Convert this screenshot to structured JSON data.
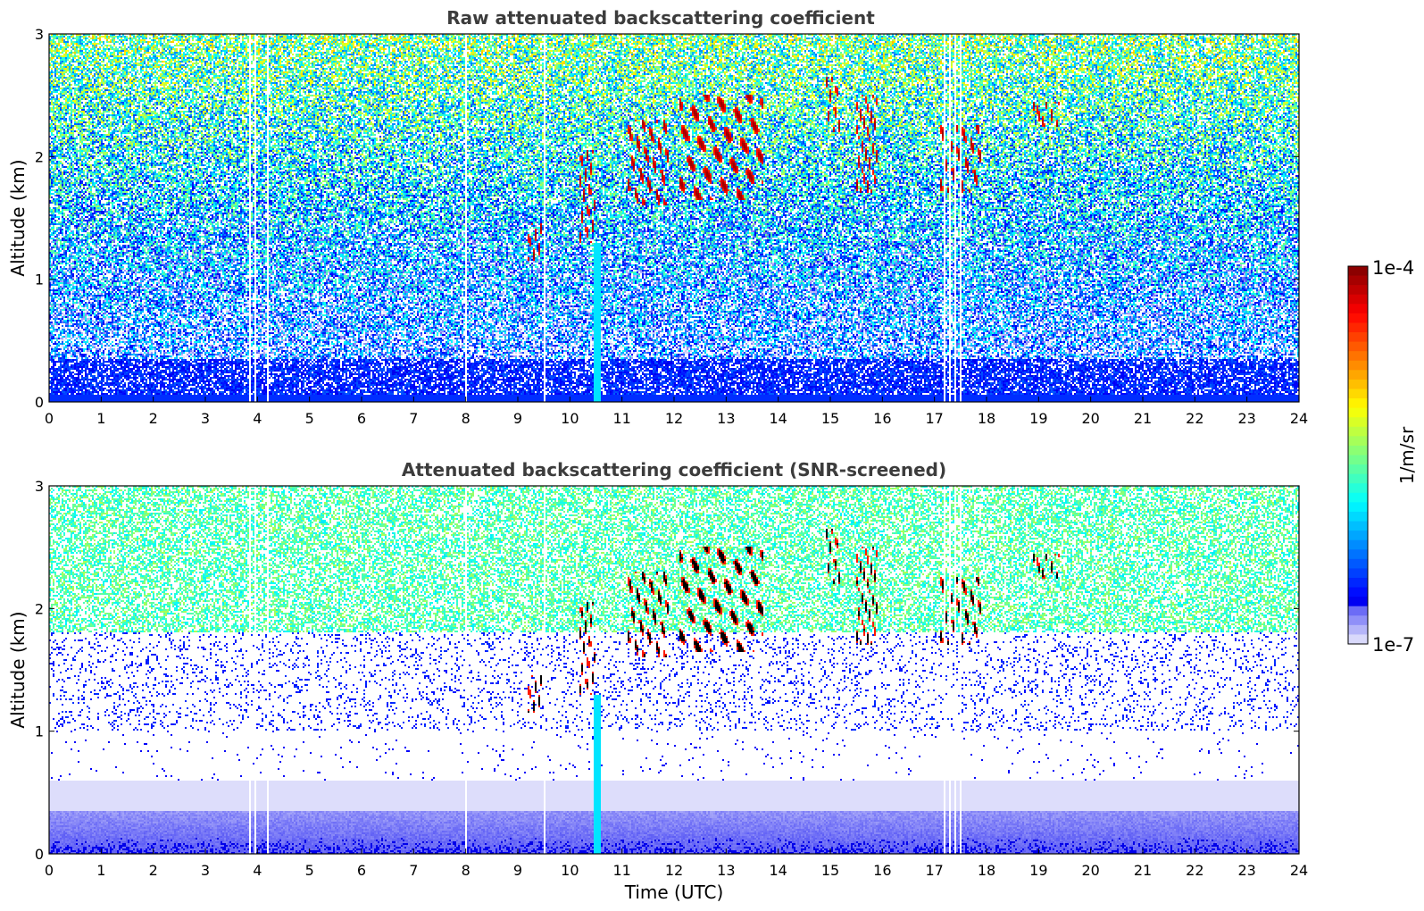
{
  "chart_data": [
    {
      "type": "heatmap",
      "title": "Raw attenuated backscattering coefficient",
      "xlabel": "",
      "ylabel": "Altitude (km)",
      "xlim": [
        0,
        24
      ],
      "ylim": [
        0,
        3
      ],
      "xticks": [
        0,
        1,
        2,
        3,
        4,
        5,
        6,
        7,
        8,
        9,
        10,
        11,
        12,
        13,
        14,
        15,
        16,
        17,
        18,
        19,
        20,
        21,
        22,
        23,
        24
      ],
      "yticks": [
        0,
        1,
        2,
        3
      ],
      "screened": false,
      "layers": [
        {
          "t": [
            9.2,
            9.5
          ],
          "alt": [
            1.15,
            1.45
          ],
          "label": "low cloud"
        },
        {
          "t": [
            10.2,
            10.5
          ],
          "alt": [
            1.3,
            2.05
          ],
          "label": "low cloud"
        },
        {
          "t": [
            11.1,
            11.9
          ],
          "alt": [
            1.6,
            2.3
          ],
          "label": "cloud"
        },
        {
          "t": [
            12.1,
            13.7
          ],
          "alt": [
            1.65,
            2.5
          ],
          "label": "cloud"
        },
        {
          "t": [
            14.9,
            15.2
          ],
          "alt": [
            2.2,
            2.65
          ],
          "label": "cloud"
        },
        {
          "t": [
            15.5,
            15.9
          ],
          "alt": [
            1.7,
            2.5
          ],
          "label": "cloud"
        },
        {
          "t": [
            17.1,
            17.9
          ],
          "alt": [
            1.7,
            2.25
          ],
          "label": "cloud"
        },
        {
          "t": [
            18.9,
            19.4
          ],
          "alt": [
            2.25,
            2.45
          ],
          "label": "cloud"
        }
      ],
      "strong_return": {
        "t": [
          10.45,
          10.58
        ],
        "alt": [
          0,
          1.3
        ]
      },
      "data_gaps_t": [
        3.85,
        3.95,
        4.2,
        8.0,
        9.5,
        17.2,
        17.3,
        17.4,
        17.5
      ]
    },
    {
      "type": "heatmap",
      "title": "Attenuated backscattering coefficient (SNR-screened)",
      "xlabel": "Time (UTC)",
      "ylabel": "Altitude (km)",
      "xlim": [
        0,
        24
      ],
      "ylim": [
        0,
        3
      ],
      "xticks": [
        0,
        1,
        2,
        3,
        4,
        5,
        6,
        7,
        8,
        9,
        10,
        11,
        12,
        13,
        14,
        15,
        16,
        17,
        18,
        19,
        20,
        21,
        22,
        23,
        24
      ],
      "yticks": [
        0,
        1,
        2,
        3
      ],
      "screened": true
    }
  ],
  "colorbar": {
    "scale": "log",
    "min_label": "1e-7",
    "max_label": "1e-4",
    "range": [
      1e-07,
      0.0001
    ],
    "label": "1/m/sr",
    "colormap": "jet"
  }
}
